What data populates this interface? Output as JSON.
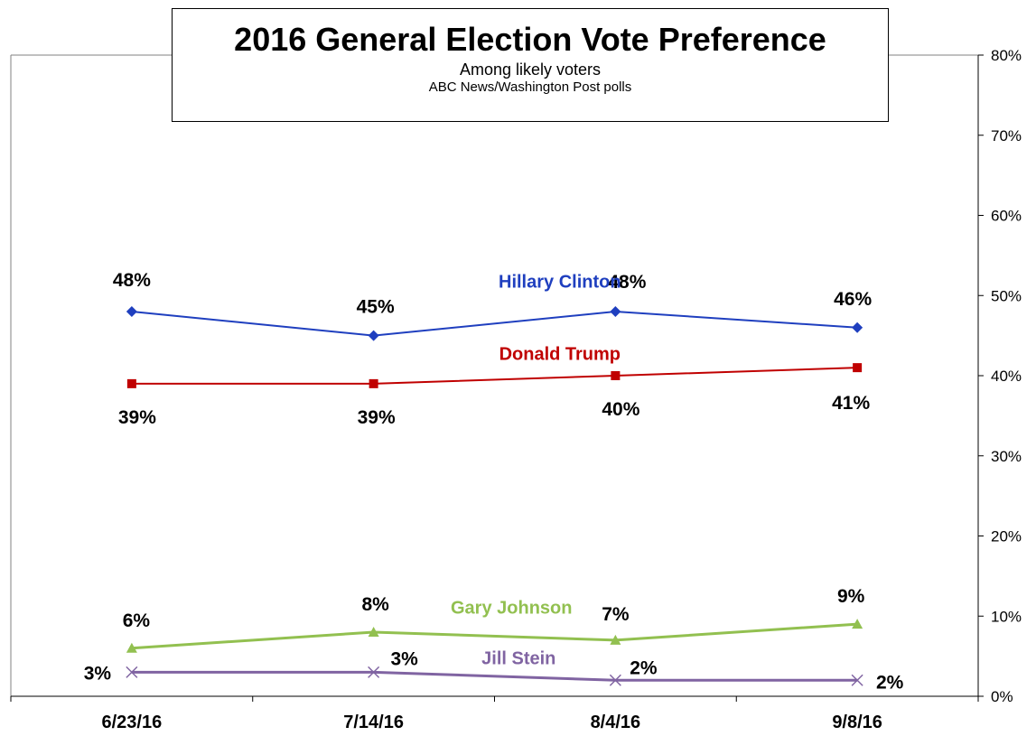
{
  "chart_data": {
    "type": "line",
    "title": "2016 General Election Vote Preference",
    "subtitle": "Among likely voters",
    "source": "ABC News/Washington  Post polls",
    "categories": [
      "6/23/16",
      "7/14/16",
      "8/4/16",
      "9/8/16"
    ],
    "ylim": [
      0,
      80
    ],
    "y_axis_side": "right",
    "y_ticks": [
      0,
      10,
      20,
      30,
      40,
      50,
      60,
      70,
      80
    ],
    "y_tick_labels": [
      "0%",
      "10%",
      "20%",
      "30%",
      "40%",
      "50%",
      "60%",
      "70%",
      "80%"
    ],
    "grid": false,
    "legend": "inline labels",
    "series": [
      {
        "name": "Hillary Clinton",
        "values": [
          48,
          45,
          48,
          46
        ],
        "data_labels": [
          "48%",
          "45%",
          "48%",
          "46%"
        ],
        "color": "#1F3FBF",
        "marker": "diamond"
      },
      {
        "name": "Donald Trump",
        "values": [
          39,
          39,
          40,
          41
        ],
        "data_labels": [
          "39%",
          "39%",
          "40%",
          "41%"
        ],
        "color": "#C00000",
        "marker": "square"
      },
      {
        "name": "Gary Johnson",
        "values": [
          6,
          8,
          7,
          9
        ],
        "data_labels": [
          "6%",
          "8%",
          "7%",
          "9%"
        ],
        "color": "#92C050",
        "marker": "triangle"
      },
      {
        "name": "Jill Stein",
        "values": [
          3,
          3,
          2,
          2
        ],
        "data_labels": [
          "3%",
          "3%",
          "2%",
          "2%"
        ],
        "color": "#8064A2",
        "marker": "x"
      }
    ]
  }
}
